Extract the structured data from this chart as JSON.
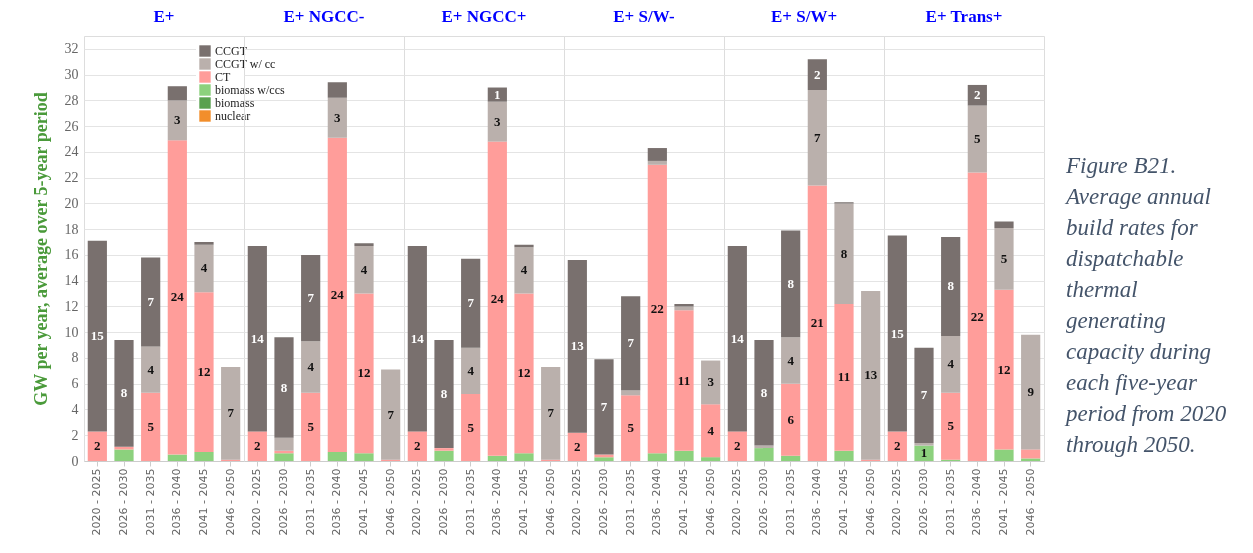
{
  "chart_data": [
    {
      "type": "bar",
      "stacked": true,
      "title": "E+",
      "ylabel": "GW per year, average over 5-year period",
      "legend": "top right",
      "grid": "y",
      "ylim": [
        0,
        33
      ],
      "yticks": [
        0,
        2,
        4,
        6,
        8,
        10,
        12,
        14,
        16,
        18,
        20,
        22,
        24,
        26,
        28,
        30,
        32
      ],
      "categories": [
        "2020 - 2025",
        "2026 - 2030",
        "2031 - 2035",
        "2036 - 2040",
        "2041 - 2045",
        "2046 - 2050"
      ],
      "series": [
        {
          "name": "nuclear",
          "color": "#f28e2b",
          "values": [
            0,
            0,
            0,
            0,
            0,
            0
          ]
        },
        {
          "name": "biomass",
          "color": "#59a14f",
          "values": [
            0,
            0,
            0,
            0,
            0,
            0
          ]
        },
        {
          "name": "biomass w/ccs",
          "color": "#8cd17d",
          "values": [
            0,
            0.9,
            0,
            0.5,
            0.7,
            0
          ]
        },
        {
          "name": "CT",
          "color": "#ff9d9a",
          "values": [
            2.3,
            0.2,
            5.3,
            24.4,
            12.4,
            0.1
          ],
          "value_labels": [
            "2",
            null,
            "5",
            "24",
            "12",
            null
          ]
        },
        {
          "name": "CCGT w/ cc",
          "color": "#bab0ac",
          "values": [
            0,
            0,
            3.6,
            3.1,
            3.7,
            7.2
          ],
          "value_labels": [
            null,
            null,
            "4",
            "3",
            "4",
            "7"
          ]
        },
        {
          "name": "CCGT",
          "color": "#79706e",
          "values": [
            14.8,
            8.3,
            6.9,
            1.1,
            0.2,
            0
          ],
          "value_labels": [
            "15",
            "8",
            "7",
            null,
            null,
            null
          ]
        }
      ]
    },
    {
      "type": "bar",
      "stacked": true,
      "title": "E+ NGCC-",
      "tick_labels": "x",
      "grid": "y",
      "ylim": [
        0,
        33
      ],
      "yticks": [
        0,
        2,
        4,
        6,
        8,
        10,
        12,
        14,
        16,
        18,
        20,
        22,
        24,
        26,
        28,
        30,
        32
      ],
      "categories": [
        "2020 - 2025",
        "2026 - 2030",
        "2031 - 2035",
        "2036 - 2040",
        "2041 - 2045",
        "2046 - 2050"
      ],
      "series": [
        {
          "color": "#f28e2b",
          "values": [
            0,
            0,
            0,
            0,
            0,
            0
          ]
        },
        {
          "color": "#59a14f",
          "values": [
            0,
            0,
            0,
            0,
            0,
            0
          ]
        },
        {
          "color": "#8cd17d",
          "values": [
            0,
            0.6,
            0,
            0.7,
            0.6,
            0
          ]
        },
        {
          "color": "#ff9d9a",
          "values": [
            2.3,
            0.2,
            5.3,
            24.4,
            12.4,
            0.1
          ],
          "value_labels": [
            "2",
            null,
            "5",
            "24",
            "12",
            null
          ]
        },
        {
          "color": "#bab0ac",
          "values": [
            0,
            1.0,
            4.0,
            3.1,
            3.7,
            7.0
          ],
          "value_labels": [
            null,
            null,
            "4",
            "3",
            "4",
            "7"
          ]
        },
        {
          "color": "#79706e",
          "values": [
            14.4,
            7.8,
            6.7,
            1.2,
            0.2,
            0
          ],
          "value_labels": [
            "14",
            "8",
            "7",
            null,
            null,
            null
          ]
        }
      ]
    },
    {
      "type": "bar",
      "stacked": true,
      "title": "E+ NGCC+",
      "tick_labels": "x",
      "grid": "y",
      "ylim": [
        0,
        33
      ],
      "yticks": [
        0,
        2,
        4,
        6,
        8,
        10,
        12,
        14,
        16,
        18,
        20,
        22,
        24,
        26,
        28,
        30,
        32
      ],
      "categories": [
        "2020 - 2025",
        "2026 - 2030",
        "2031 - 2035",
        "2036 - 2040",
        "2041 - 2045",
        "2046 - 2050"
      ],
      "series": [
        {
          "color": "#f28e2b",
          "values": [
            0,
            0,
            0,
            0,
            0,
            0
          ]
        },
        {
          "color": "#59a14f",
          "values": [
            0,
            0,
            0,
            0,
            0,
            0
          ]
        },
        {
          "color": "#8cd17d",
          "values": [
            0,
            0.8,
            0,
            0.4,
            0.6,
            0
          ]
        },
        {
          "color": "#ff9d9a",
          "values": [
            2.3,
            0.2,
            5.2,
            24.4,
            12.4,
            0.1
          ],
          "value_labels": [
            "2",
            null,
            "5",
            "24",
            "12",
            null
          ]
        },
        {
          "color": "#bab0ac",
          "values": [
            0,
            0,
            3.6,
            3.1,
            3.6,
            7.2
          ],
          "value_labels": [
            null,
            null,
            "4",
            "3",
            "4",
            "7"
          ]
        },
        {
          "color": "#79706e",
          "values": [
            14.4,
            8.4,
            6.9,
            1.1,
            0.2,
            0
          ],
          "value_labels": [
            "14",
            "8",
            "7",
            "1",
            null,
            null
          ]
        }
      ]
    },
    {
      "type": "bar",
      "stacked": true,
      "title": "E+ S/W-",
      "tick_labels": "x",
      "grid": "y",
      "ylim": [
        0,
        33
      ],
      "yticks": [
        0,
        2,
        4,
        6,
        8,
        10,
        12,
        14,
        16,
        18,
        20,
        22,
        24,
        26,
        28,
        30,
        32
      ],
      "categories": [
        "2020 - 2025",
        "2026 - 2030",
        "2031 - 2035",
        "2036 - 2040",
        "2041 - 2045",
        "2046 - 2050"
      ],
      "series": [
        {
          "color": "#f28e2b",
          "values": [
            0,
            0,
            0,
            0,
            0,
            0
          ]
        },
        {
          "color": "#59a14f",
          "values": [
            0,
            0,
            0,
            0,
            0,
            0
          ]
        },
        {
          "color": "#8cd17d",
          "values": [
            0,
            0.3,
            0,
            0.6,
            0.8,
            0.3
          ]
        },
        {
          "color": "#ff9d9a",
          "values": [
            2.2,
            0.2,
            5.1,
            22.4,
            10.9,
            4.1
          ],
          "value_labels": [
            "2",
            null,
            "5",
            "22",
            "11",
            "4"
          ]
        },
        {
          "color": "#bab0ac",
          "values": [
            0,
            0,
            0.4,
            0.3,
            0.3,
            3.4
          ],
          "value_labels": [
            null,
            null,
            null,
            null,
            null,
            "3"
          ]
        },
        {
          "color": "#79706e",
          "values": [
            13.4,
            7.4,
            7.3,
            1.0,
            0.2,
            0
          ],
          "value_labels": [
            "13",
            "7",
            "7",
            null,
            null,
            null
          ]
        }
      ]
    },
    {
      "type": "bar",
      "stacked": true,
      "title": "E+ S/W+",
      "tick_labels": "x",
      "grid": "y",
      "ylim": [
        0,
        33
      ],
      "yticks": [
        0,
        2,
        4,
        6,
        8,
        10,
        12,
        14,
        16,
        18,
        20,
        22,
        24,
        26,
        28,
        30,
        32
      ],
      "categories": [
        "2020 - 2025",
        "2026 - 2030",
        "2031 - 2035",
        "2036 - 2040",
        "2041 - 2045",
        "2046 - 2050"
      ],
      "series": [
        {
          "color": "#f28e2b",
          "values": [
            0,
            0,
            0,
            0,
            0,
            0
          ]
        },
        {
          "color": "#59a14f",
          "values": [
            0,
            0,
            0,
            0,
            0,
            0
          ]
        },
        {
          "color": "#8cd17d",
          "values": [
            0,
            1.0,
            0.4,
            0,
            0.8,
            0
          ]
        },
        {
          "color": "#ff9d9a",
          "values": [
            2.3,
            0,
            5.6,
            21.4,
            11.4,
            0.1
          ],
          "value_labels": [
            "2",
            null,
            "6",
            "21",
            "11",
            null
          ]
        },
        {
          "color": "#bab0ac",
          "values": [
            0,
            0.2,
            3.6,
            7.4,
            7.8,
            13.1
          ],
          "value_labels": [
            null,
            null,
            "4",
            "7",
            "8",
            "13"
          ]
        },
        {
          "color": "#79706e",
          "values": [
            14.4,
            8.2,
            8.3,
            2.4,
            0.1,
            0
          ],
          "value_labels": [
            "14",
            "8",
            "8",
            "2",
            null,
            null
          ]
        }
      ]
    },
    {
      "type": "bar",
      "stacked": true,
      "title": "E+ Trans+",
      "tick_labels": "x",
      "grid": "y",
      "ylim": [
        0,
        33
      ],
      "yticks": [
        0,
        2,
        4,
        6,
        8,
        10,
        12,
        14,
        16,
        18,
        20,
        22,
        24,
        26,
        28,
        30,
        32
      ],
      "categories": [
        "2020 - 2025",
        "2026 - 2030",
        "2031 - 2035",
        "2036 - 2040",
        "2041 - 2045",
        "2046 - 2050"
      ],
      "annotations": [
        "Figure B21. Average annual build rates for dispatchable thermal generating capacity during each five-year period from 2020 through 2050."
      ],
      "series": [
        {
          "color": "#f28e2b",
          "values": [
            0,
            0,
            0,
            0,
            0,
            0
          ]
        },
        {
          "color": "#59a14f",
          "values": [
            0,
            0,
            0,
            0,
            0,
            0
          ]
        },
        {
          "color": "#8cd17d",
          "values": [
            0,
            1.2,
            0.1,
            0,
            0.9,
            0.2
          ],
          "value_labels": [
            null,
            "1",
            null,
            null,
            null,
            null
          ]
        },
        {
          "color": "#ff9d9a",
          "values": [
            2.3,
            0,
            5.2,
            22.4,
            12.4,
            0.7
          ],
          "value_labels": [
            "2",
            null,
            "5",
            "22",
            "12",
            null
          ]
        },
        {
          "color": "#bab0ac",
          "values": [
            0,
            0.2,
            4.4,
            5.2,
            4.8,
            8.9
          ],
          "value_labels": [
            null,
            null,
            "4",
            "5",
            "5",
            "9"
          ]
        },
        {
          "color": "#79706e",
          "values": [
            15.2,
            7.4,
            7.7,
            1.6,
            0.5,
            0
          ],
          "value_labels": [
            "15",
            "7",
            "8",
            "2",
            null,
            null
          ]
        }
      ]
    }
  ]
}
